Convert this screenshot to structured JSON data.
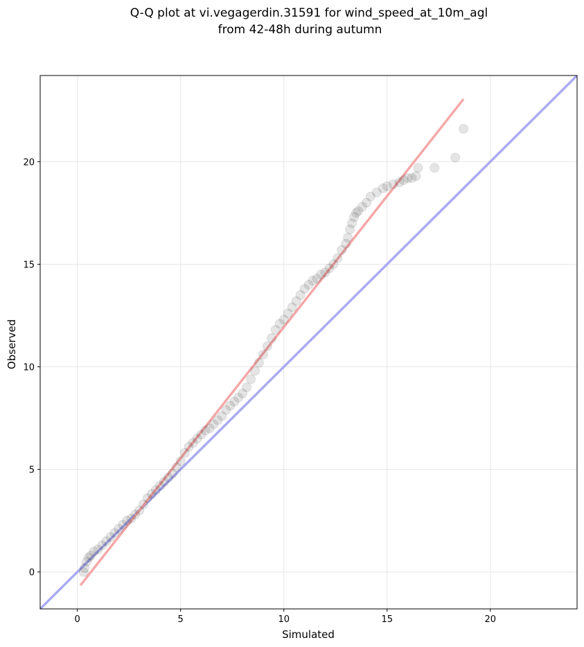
{
  "chart_data": {
    "type": "scatter",
    "title_lines": [
      "Q-Q plot at vi.vegagerdin.31591 for wind_speed_at_10m_agl",
      "from 42-48h during autumn"
    ],
    "xlabel": "Simulated",
    "ylabel": "Observed",
    "xlim": [
      -1.8,
      24.2
    ],
    "ylim": [
      -1.8,
      24.2
    ],
    "xticks": [
      0,
      5,
      10,
      15,
      20
    ],
    "yticks": [
      0,
      5,
      10,
      15,
      20
    ],
    "grid": true,
    "colors": {
      "points": "#000000",
      "identity_line": "#aaaaf2",
      "fit_line": "#f5a8a8"
    },
    "identity_line": {
      "x": [
        -1.8,
        24.2
      ],
      "y": [
        -1.8,
        24.2
      ]
    },
    "fit_line": {
      "x": [
        0.15,
        18.7
      ],
      "y": [
        -0.65,
        23.05
      ]
    },
    "points": {
      "x": [
        0.3,
        0.35,
        0.45,
        0.55,
        0.65,
        0.8,
        1.0,
        1.2,
        1.4,
        1.6,
        1.8,
        2.0,
        2.2,
        2.4,
        2.6,
        2.8,
        3.0,
        3.2,
        3.4,
        3.6,
        3.8,
        4.0,
        4.2,
        4.4,
        4.6,
        4.8,
        5.0,
        5.2,
        5.4,
        5.6,
        5.8,
        6.0,
        6.2,
        6.4,
        6.6,
        6.8,
        7.0,
        7.2,
        7.4,
        7.6,
        7.8,
        8.0,
        8.2,
        8.4,
        8.6,
        8.8,
        9.0,
        9.2,
        9.4,
        9.6,
        9.8,
        10.0,
        10.2,
        10.4,
        10.6,
        10.8,
        11.0,
        11.2,
        11.4,
        11.6,
        11.8,
        12.0,
        12.2,
        12.4,
        12.6,
        12.8,
        13.0,
        13.1,
        13.2,
        13.3,
        13.4,
        13.5,
        13.6,
        13.8,
        14.0,
        14.2,
        14.5,
        14.8,
        15.0,
        15.3,
        15.6,
        15.8,
        16.0,
        16.2,
        16.4,
        16.5,
        17.3,
        18.3,
        18.7
      ],
      "y": [
        0.0,
        0.2,
        0.5,
        0.7,
        0.8,
        1.0,
        1.1,
        1.3,
        1.5,
        1.7,
        1.9,
        2.1,
        2.3,
        2.5,
        2.6,
        2.8,
        3.0,
        3.3,
        3.6,
        3.8,
        4.0,
        4.2,
        4.4,
        4.6,
        4.8,
        5.1,
        5.4,
        5.8,
        6.1,
        6.3,
        6.5,
        6.7,
        6.9,
        7.0,
        7.2,
        7.4,
        7.6,
        7.9,
        8.1,
        8.3,
        8.5,
        8.7,
        9.0,
        9.4,
        9.8,
        10.2,
        10.6,
        11.0,
        11.4,
        11.8,
        12.1,
        12.3,
        12.6,
        12.9,
        13.2,
        13.5,
        13.8,
        14.0,
        14.2,
        14.3,
        14.5,
        14.6,
        14.8,
        15.0,
        15.3,
        15.7,
        16.0,
        16.3,
        16.7,
        17.0,
        17.3,
        17.5,
        17.6,
        17.8,
        18.0,
        18.3,
        18.5,
        18.7,
        18.8,
        18.9,
        19.0,
        19.1,
        19.2,
        19.2,
        19.3,
        19.7,
        19.7,
        20.2,
        21.6
      ]
    }
  }
}
